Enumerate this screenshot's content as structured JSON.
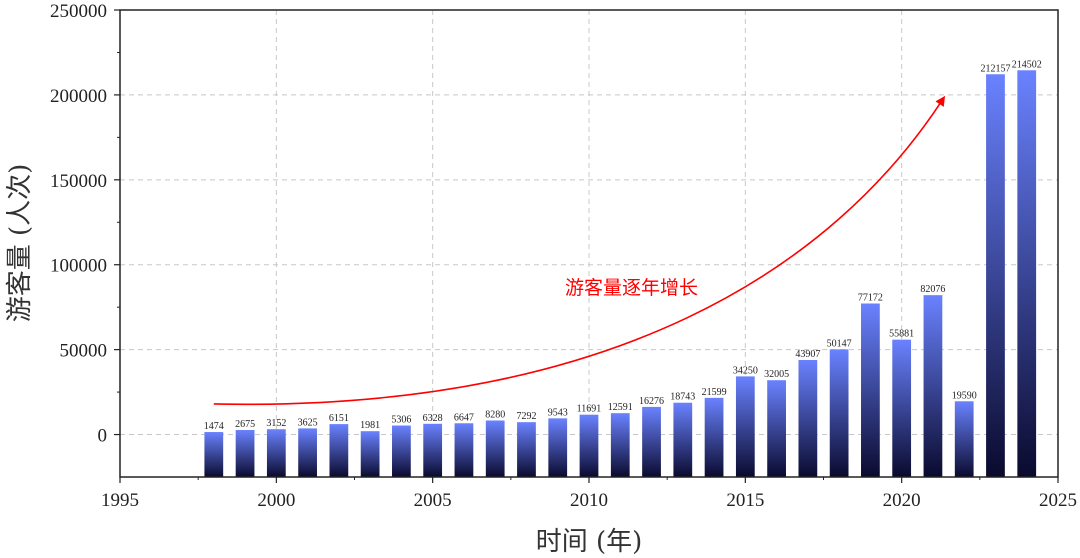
{
  "chart_data": {
    "type": "bar",
    "title": "",
    "xlabel": "时间 (年)",
    "ylabel": "游客量 (人次)",
    "xlim": [
      1995,
      2025
    ],
    "ylim": [
      -25000,
      250000
    ],
    "x_ticks": [
      1995,
      2000,
      2005,
      2010,
      2015,
      2020,
      2025
    ],
    "y_ticks": [
      0,
      50000,
      100000,
      150000,
      200000,
      250000
    ],
    "grid": true,
    "x": [
      1998,
      1999,
      2000,
      2001,
      2002,
      2003,
      2004,
      2005,
      2006,
      2007,
      2008,
      2009,
      2010,
      2011,
      2012,
      2013,
      2014,
      2015,
      2016,
      2017,
      2018,
      2019,
      2020,
      2021,
      2022,
      2023,
      2024
    ],
    "values": [
      1474,
      2675,
      3152,
      3625,
      6151,
      1981,
      5306,
      6328,
      6647,
      8280,
      7292,
      9543,
      11691,
      12591,
      16276,
      18743,
      21599,
      34250,
      32005,
      43907,
      50147,
      77172,
      55881,
      82076,
      19590,
      212157,
      214502
    ],
    "bar_gradient": [
      "#6a82ff",
      "#0a0a2e"
    ],
    "annotation": {
      "text": "游客量逐年增长",
      "color": "#ff0000",
      "arrow_from": [
        1998,
        18000
      ],
      "arrow_to": [
        2021.3,
        197000
      ]
    }
  }
}
